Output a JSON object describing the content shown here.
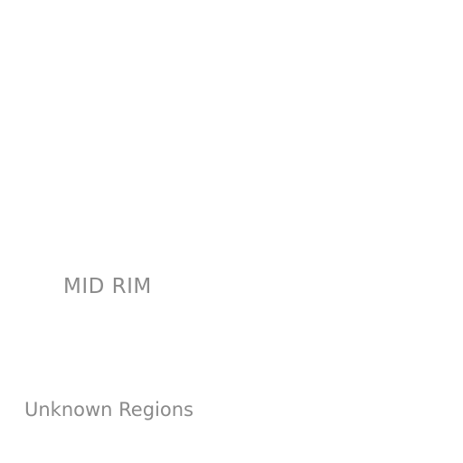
{
  "map": {
    "labels": {
      "mid_rim": "MID RIM",
      "unknown_regions": "Unknown Regions"
    },
    "label_color": "#8a8a8a",
    "background_color": "#ffffff"
  }
}
